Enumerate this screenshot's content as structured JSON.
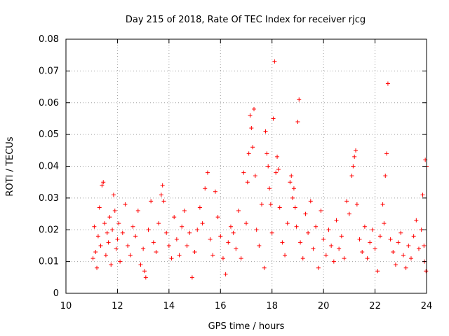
{
  "chart_data": {
    "type": "scatter",
    "title": "Day 215 of 2018, Rate Of TEC Index for receiver rjcg",
    "xlabel": "GPS time / hours",
    "ylabel": "ROTI / TECUs",
    "xlim": [
      10,
      24
    ],
    "ylim": [
      0,
      0.08
    ],
    "xticks": [
      10,
      12,
      14,
      16,
      18,
      20,
      22,
      24
    ],
    "yticks": [
      0,
      0.01,
      0.02,
      0.03,
      0.04,
      0.05,
      0.06,
      0.07,
      0.08
    ],
    "xtick_labels": [
      "10",
      "12",
      "14",
      "16",
      "18",
      "20",
      "22",
      "24"
    ],
    "ytick_labels": [
      "0",
      "0.01",
      "0.02",
      "0.03",
      "0.04",
      "0.05",
      "0.06",
      "0.07",
      "0.08"
    ],
    "grid": true,
    "marker": "+",
    "color": "#ff0000",
    "series": [
      {
        "name": "ROTI",
        "points": [
          [
            11.05,
            0.011
          ],
          [
            11.1,
            0.021
          ],
          [
            11.15,
            0.013
          ],
          [
            11.2,
            0.008
          ],
          [
            11.25,
            0.018
          ],
          [
            11.3,
            0.027
          ],
          [
            11.35,
            0.015
          ],
          [
            11.4,
            0.034
          ],
          [
            11.45,
            0.035
          ],
          [
            11.5,
            0.022
          ],
          [
            11.55,
            0.012
          ],
          [
            11.6,
            0.019
          ],
          [
            11.65,
            0.016
          ],
          [
            11.7,
            0.024
          ],
          [
            11.75,
            0.009
          ],
          [
            11.8,
            0.02
          ],
          [
            11.85,
            0.031
          ],
          [
            11.9,
            0.026
          ],
          [
            11.95,
            0.014
          ],
          [
            12.0,
            0.017
          ],
          [
            12.05,
            0.022
          ],
          [
            12.1,
            0.01
          ],
          [
            12.2,
            0.019
          ],
          [
            12.3,
            0.028
          ],
          [
            12.4,
            0.015
          ],
          [
            12.5,
            0.012
          ],
          [
            12.6,
            0.021
          ],
          [
            12.7,
            0.018
          ],
          [
            12.8,
            0.026
          ],
          [
            12.9,
            0.009
          ],
          [
            13.0,
            0.014
          ],
          [
            13.05,
            0.007
          ],
          [
            13.1,
            0.005
          ],
          [
            13.2,
            0.02
          ],
          [
            13.3,
            0.029
          ],
          [
            13.4,
            0.016
          ],
          [
            13.5,
            0.013
          ],
          [
            13.6,
            0.022
          ],
          [
            13.7,
            0.031
          ],
          [
            13.75,
            0.034
          ],
          [
            13.8,
            0.029
          ],
          [
            13.9,
            0.019
          ],
          [
            14.0,
            0.015
          ],
          [
            14.1,
            0.011
          ],
          [
            14.2,
            0.024
          ],
          [
            14.3,
            0.017
          ],
          [
            14.4,
            0.012
          ],
          [
            14.5,
            0.021
          ],
          [
            14.6,
            0.026
          ],
          [
            14.7,
            0.015
          ],
          [
            14.8,
            0.019
          ],
          [
            14.9,
            0.005
          ],
          [
            15.0,
            0.013
          ],
          [
            15.1,
            0.02
          ],
          [
            15.2,
            0.027
          ],
          [
            15.3,
            0.022
          ],
          [
            15.4,
            0.033
          ],
          [
            15.5,
            0.038
          ],
          [
            15.6,
            0.017
          ],
          [
            15.7,
            0.012
          ],
          [
            15.8,
            0.032
          ],
          [
            15.9,
            0.024
          ],
          [
            16.0,
            0.018
          ],
          [
            16.1,
            0.011
          ],
          [
            16.2,
            0.006
          ],
          [
            16.3,
            0.016
          ],
          [
            16.4,
            0.021
          ],
          [
            16.5,
            0.019
          ],
          [
            16.6,
            0.014
          ],
          [
            16.7,
            0.026
          ],
          [
            16.8,
            0.011
          ],
          [
            16.9,
            0.038
          ],
          [
            17.0,
            0.022
          ],
          [
            17.05,
            0.035
          ],
          [
            17.1,
            0.044
          ],
          [
            17.15,
            0.056
          ],
          [
            17.2,
            0.052
          ],
          [
            17.25,
            0.046
          ],
          [
            17.3,
            0.058
          ],
          [
            17.35,
            0.037
          ],
          [
            17.4,
            0.02
          ],
          [
            17.5,
            0.015
          ],
          [
            17.6,
            0.028
          ],
          [
            17.7,
            0.008
          ],
          [
            17.75,
            0.051
          ],
          [
            17.8,
            0.044
          ],
          [
            17.85,
            0.04
          ],
          [
            17.9,
            0.033
          ],
          [
            17.95,
            0.028
          ],
          [
            18.0,
            0.019
          ],
          [
            18.05,
            0.055
          ],
          [
            18.1,
            0.073
          ],
          [
            18.15,
            0.038
          ],
          [
            18.2,
            0.043
          ],
          [
            18.25,
            0.039
          ],
          [
            18.3,
            0.027
          ],
          [
            18.4,
            0.016
          ],
          [
            18.5,
            0.012
          ],
          [
            18.6,
            0.022
          ],
          [
            18.7,
            0.035
          ],
          [
            18.75,
            0.037
          ],
          [
            18.8,
            0.03
          ],
          [
            18.85,
            0.033
          ],
          [
            18.9,
            0.027
          ],
          [
            18.95,
            0.021
          ],
          [
            19.0,
            0.054
          ],
          [
            19.05,
            0.061
          ],
          [
            19.1,
            0.016
          ],
          [
            19.2,
            0.011
          ],
          [
            19.3,
            0.025
          ],
          [
            19.4,
            0.019
          ],
          [
            19.5,
            0.029
          ],
          [
            19.6,
            0.014
          ],
          [
            19.7,
            0.021
          ],
          [
            19.8,
            0.008
          ],
          [
            19.9,
            0.026
          ],
          [
            20.0,
            0.017
          ],
          [
            20.1,
            0.012
          ],
          [
            20.2,
            0.02
          ],
          [
            20.3,
            0.015
          ],
          [
            20.4,
            0.01
          ],
          [
            20.5,
            0.023
          ],
          [
            20.6,
            0.014
          ],
          [
            20.7,
            0.018
          ],
          [
            20.8,
            0.011
          ],
          [
            20.9,
            0.029
          ],
          [
            21.0,
            0.025
          ],
          [
            21.1,
            0.037
          ],
          [
            21.15,
            0.04
          ],
          [
            21.2,
            0.043
          ],
          [
            21.25,
            0.045
          ],
          [
            21.3,
            0.028
          ],
          [
            21.4,
            0.017
          ],
          [
            21.5,
            0.013
          ],
          [
            21.6,
            0.021
          ],
          [
            21.7,
            0.011
          ],
          [
            21.8,
            0.016
          ],
          [
            21.9,
            0.02
          ],
          [
            22.0,
            0.014
          ],
          [
            22.1,
            0.007
          ],
          [
            22.2,
            0.018
          ],
          [
            22.3,
            0.028
          ],
          [
            22.35,
            0.022
          ],
          [
            22.4,
            0.037
          ],
          [
            22.45,
            0.044
          ],
          [
            22.5,
            0.066
          ],
          [
            22.6,
            0.017
          ],
          [
            22.7,
            0.013
          ],
          [
            22.8,
            0.009
          ],
          [
            22.9,
            0.016
          ],
          [
            23.0,
            0.019
          ],
          [
            23.1,
            0.012
          ],
          [
            23.2,
            0.008
          ],
          [
            23.3,
            0.015
          ],
          [
            23.4,
            0.011
          ],
          [
            23.5,
            0.018
          ],
          [
            23.6,
            0.023
          ],
          [
            23.7,
            0.014
          ],
          [
            23.8,
            0.02
          ],
          [
            23.85,
            0.031
          ],
          [
            23.9,
            0.015
          ],
          [
            23.95,
            0.042
          ],
          [
            24.0,
            0.04
          ],
          [
            23.98,
            0.007
          ],
          [
            23.92,
            0.01
          ]
        ]
      }
    ]
  }
}
